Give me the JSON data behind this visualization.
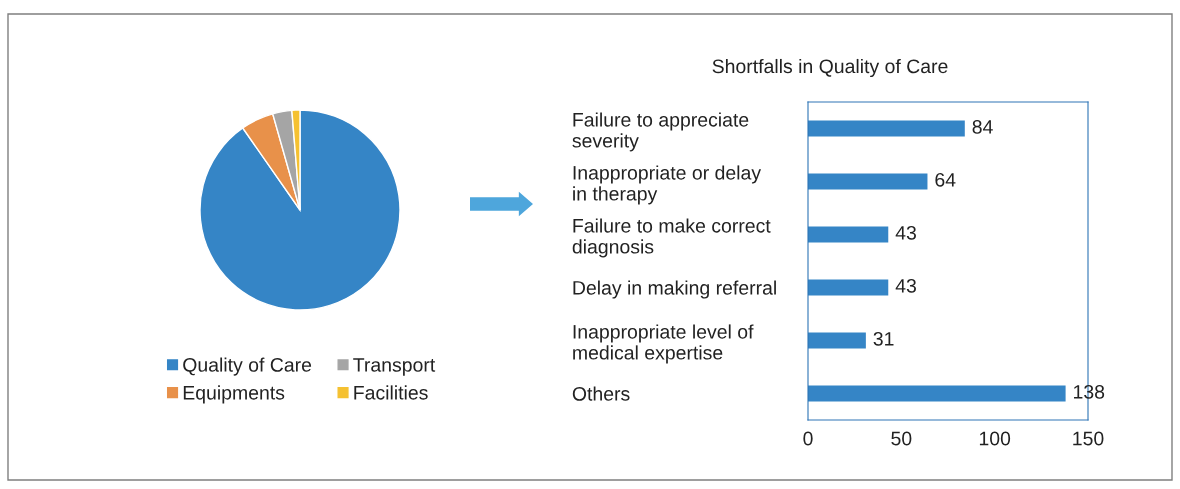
{
  "chart_data": [
    {
      "type": "pie",
      "categories": [
        "Quality of Care",
        "Equipments",
        "Transport",
        "Facilities"
      ],
      "values": [
        90.3,
        5.3,
        3.1,
        1.3
      ],
      "colors": [
        "#3585c6",
        "#e8914a",
        "#a5a5a5",
        "#f5c131"
      ],
      "legend": "bottom"
    },
    {
      "type": "bar",
      "orientation": "horizontal",
      "title": "Shortfalls in Quality of Care",
      "categories": [
        "Failure to appreciate\nseverity",
        "Inappropriate or delay\nin therapy",
        "Failure to make correct\ndiagnosis",
        "Delay in making referral",
        "Inappropriate level of\nmedical expertise",
        "Others"
      ],
      "values": [
        84,
        64,
        43,
        43,
        31,
        138
      ],
      "color": "#3585c6",
      "xlim": [
        0,
        150
      ],
      "xticks": [
        0,
        50,
        100,
        150
      ],
      "data_labels": true,
      "grid": false
    }
  ]
}
